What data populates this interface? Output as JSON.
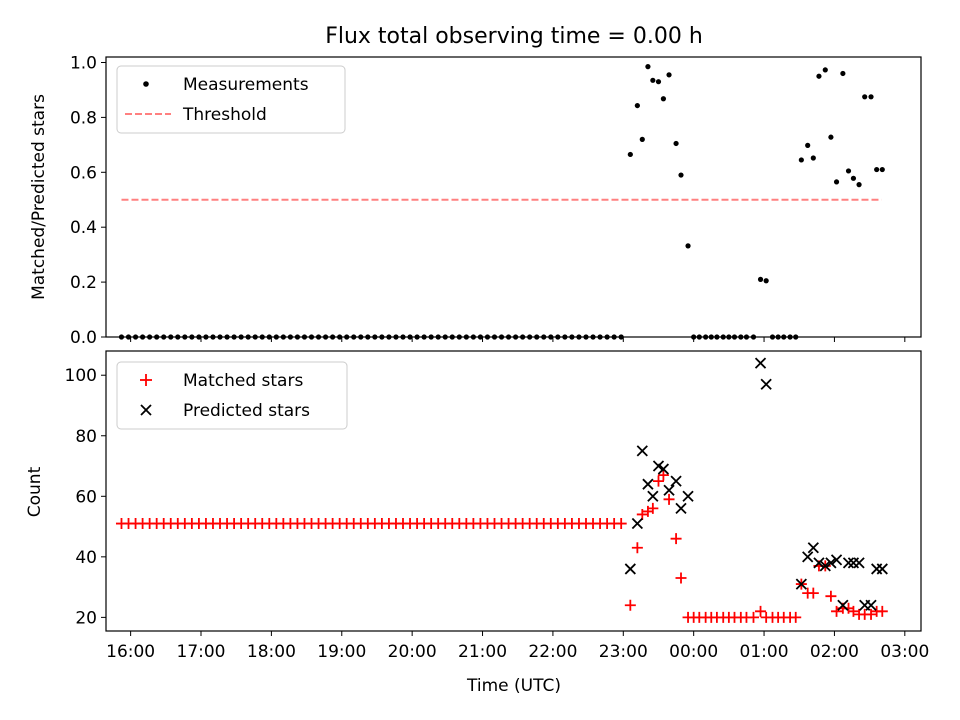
{
  "figure": {
    "title": "Flux total observing time = 0.00 h",
    "xlabel": "Time (UTC)",
    "x_ticks": [
      "16:00",
      "17:00",
      "18:00",
      "19:00",
      "20:00",
      "21:00",
      "22:00",
      "23:00",
      "00:00",
      "01:00",
      "02:00",
      "03:00"
    ]
  },
  "chart_data": [
    {
      "type": "scatter",
      "ylabel": "Matched/Predicted stars",
      "ylim": [
        0,
        1.02
      ],
      "yticks": [
        0,
        0.2,
        0.4,
        0.6,
        0.8,
        1.0
      ],
      "ytick_labels": [
        "0.0",
        "0.2",
        "0.4",
        "0.6",
        "0.8",
        "1.0"
      ],
      "xlim_hours": [
        15.65,
        27.23
      ],
      "legend": {
        "location": "upper left",
        "entries": [
          "Measurements",
          "Threshold"
        ]
      },
      "threshold": {
        "name": "Threshold",
        "value": 0.5,
        "x_range": [
          15.87,
          26.67
        ],
        "color": "#ff8080"
      },
      "series": [
        {
          "name": "Measurements",
          "color": "#000000",
          "points": [
            [
              15.87,
              0
            ],
            [
              15.97,
              0
            ],
            [
              16.07,
              0
            ],
            [
              16.17,
              0
            ],
            [
              16.27,
              0
            ],
            [
              16.37,
              0
            ],
            [
              16.47,
              0
            ],
            [
              16.57,
              0
            ],
            [
              16.67,
              0
            ],
            [
              16.77,
              0
            ],
            [
              16.87,
              0
            ],
            [
              16.97,
              0
            ],
            [
              17.07,
              0
            ],
            [
              17.17,
              0
            ],
            [
              17.27,
              0
            ],
            [
              17.37,
              0
            ],
            [
              17.47,
              0
            ],
            [
              17.57,
              0
            ],
            [
              17.67,
              0
            ],
            [
              17.77,
              0
            ],
            [
              17.87,
              0
            ],
            [
              17.97,
              0
            ],
            [
              18.07,
              0
            ],
            [
              18.17,
              0
            ],
            [
              18.27,
              0
            ],
            [
              18.37,
              0
            ],
            [
              18.47,
              0
            ],
            [
              18.57,
              0
            ],
            [
              18.67,
              0
            ],
            [
              18.77,
              0
            ],
            [
              18.87,
              0
            ],
            [
              18.97,
              0
            ],
            [
              19.07,
              0
            ],
            [
              19.17,
              0
            ],
            [
              19.27,
              0
            ],
            [
              19.37,
              0
            ],
            [
              19.47,
              0
            ],
            [
              19.57,
              0
            ],
            [
              19.67,
              0
            ],
            [
              19.77,
              0
            ],
            [
              19.87,
              0
            ],
            [
              19.97,
              0
            ],
            [
              20.07,
              0
            ],
            [
              20.17,
              0
            ],
            [
              20.27,
              0
            ],
            [
              20.37,
              0
            ],
            [
              20.47,
              0
            ],
            [
              20.57,
              0
            ],
            [
              20.67,
              0
            ],
            [
              20.77,
              0
            ],
            [
              20.87,
              0
            ],
            [
              20.97,
              0
            ],
            [
              21.07,
              0
            ],
            [
              21.17,
              0
            ],
            [
              21.27,
              0
            ],
            [
              21.37,
              0
            ],
            [
              21.47,
              0
            ],
            [
              21.57,
              0
            ],
            [
              21.67,
              0
            ],
            [
              21.77,
              0
            ],
            [
              21.87,
              0
            ],
            [
              21.97,
              0
            ],
            [
              22.07,
              0
            ],
            [
              22.17,
              0
            ],
            [
              22.27,
              0
            ],
            [
              22.37,
              0
            ],
            [
              22.47,
              0
            ],
            [
              22.57,
              0
            ],
            [
              22.67,
              0
            ],
            [
              22.77,
              0
            ],
            [
              22.87,
              0
            ],
            [
              22.97,
              0
            ],
            [
              23.1,
              0.665
            ],
            [
              23.2,
              0.843
            ],
            [
              23.27,
              0.72
            ],
            [
              23.35,
              0.985
            ],
            [
              23.42,
              0.935
            ],
            [
              23.5,
              0.93
            ],
            [
              23.57,
              0.868
            ],
            [
              23.65,
              0.955
            ],
            [
              23.75,
              0.705
            ],
            [
              23.82,
              0.59
            ],
            [
              23.92,
              0.332
            ],
            [
              24.0,
              0
            ],
            [
              24.08,
              0
            ],
            [
              24.17,
              0
            ],
            [
              24.25,
              0
            ],
            [
              24.33,
              0
            ],
            [
              24.42,
              0
            ],
            [
              24.5,
              0
            ],
            [
              24.58,
              0
            ],
            [
              24.67,
              0
            ],
            [
              24.75,
              0
            ],
            [
              24.85,
              0
            ],
            [
              24.95,
              0.21
            ],
            [
              25.03,
              0.205
            ],
            [
              25.12,
              0
            ],
            [
              25.2,
              0
            ],
            [
              25.28,
              0
            ],
            [
              25.37,
              0
            ],
            [
              25.45,
              0
            ],
            [
              25.53,
              0.645
            ],
            [
              25.62,
              0.698
            ],
            [
              25.7,
              0.652
            ],
            [
              25.78,
              0.95
            ],
            [
              25.87,
              0.973
            ],
            [
              25.95,
              0.728
            ],
            [
              26.03,
              0.565
            ],
            [
              26.12,
              0.96
            ],
            [
              26.2,
              0.605
            ],
            [
              26.27,
              0.578
            ],
            [
              26.35,
              0.555
            ],
            [
              26.43,
              0.875
            ],
            [
              26.52,
              0.875
            ],
            [
              26.6,
              0.61
            ],
            [
              26.68,
              0.61
            ]
          ]
        }
      ]
    },
    {
      "type": "scatter",
      "ylabel": "Count",
      "ylim": [
        15.5,
        108
      ],
      "yticks": [
        20,
        40,
        60,
        80,
        100
      ],
      "ytick_labels": [
        "20",
        "40",
        "60",
        "80",
        "100"
      ],
      "xlim_hours": [
        15.65,
        27.23
      ],
      "legend": {
        "location": "upper left",
        "entries": [
          "Matched stars",
          "Predicted stars"
        ]
      },
      "series": [
        {
          "name": "Matched stars",
          "marker": "plus",
          "color": "#ff0000",
          "points": [
            [
              15.87,
              51
            ],
            [
              15.97,
              51
            ],
            [
              16.07,
              51
            ],
            [
              16.17,
              51
            ],
            [
              16.27,
              51
            ],
            [
              16.37,
              51
            ],
            [
              16.47,
              51
            ],
            [
              16.57,
              51
            ],
            [
              16.67,
              51
            ],
            [
              16.77,
              51
            ],
            [
              16.87,
              51
            ],
            [
              16.97,
              51
            ],
            [
              17.07,
              51
            ],
            [
              17.17,
              51
            ],
            [
              17.27,
              51
            ],
            [
              17.37,
              51
            ],
            [
              17.47,
              51
            ],
            [
              17.57,
              51
            ],
            [
              17.67,
              51
            ],
            [
              17.77,
              51
            ],
            [
              17.87,
              51
            ],
            [
              17.97,
              51
            ],
            [
              18.07,
              51
            ],
            [
              18.17,
              51
            ],
            [
              18.27,
              51
            ],
            [
              18.37,
              51
            ],
            [
              18.47,
              51
            ],
            [
              18.57,
              51
            ],
            [
              18.67,
              51
            ],
            [
              18.77,
              51
            ],
            [
              18.87,
              51
            ],
            [
              18.97,
              51
            ],
            [
              19.07,
              51
            ],
            [
              19.17,
              51
            ],
            [
              19.27,
              51
            ],
            [
              19.37,
              51
            ],
            [
              19.47,
              51
            ],
            [
              19.57,
              51
            ],
            [
              19.67,
              51
            ],
            [
              19.77,
              51
            ],
            [
              19.87,
              51
            ],
            [
              19.97,
              51
            ],
            [
              20.07,
              51
            ],
            [
              20.17,
              51
            ],
            [
              20.27,
              51
            ],
            [
              20.37,
              51
            ],
            [
              20.47,
              51
            ],
            [
              20.57,
              51
            ],
            [
              20.67,
              51
            ],
            [
              20.77,
              51
            ],
            [
              20.87,
              51
            ],
            [
              20.97,
              51
            ],
            [
              21.07,
              51
            ],
            [
              21.17,
              51
            ],
            [
              21.27,
              51
            ],
            [
              21.37,
              51
            ],
            [
              21.47,
              51
            ],
            [
              21.57,
              51
            ],
            [
              21.67,
              51
            ],
            [
              21.77,
              51
            ],
            [
              21.87,
              51
            ],
            [
              21.97,
              51
            ],
            [
              22.07,
              51
            ],
            [
              22.17,
              51
            ],
            [
              22.27,
              51
            ],
            [
              22.37,
              51
            ],
            [
              22.47,
              51
            ],
            [
              22.57,
              51
            ],
            [
              22.67,
              51
            ],
            [
              22.77,
              51
            ],
            [
              22.87,
              51
            ],
            [
              22.97,
              51
            ],
            [
              23.1,
              24
            ],
            [
              23.2,
              43
            ],
            [
              23.27,
              54
            ],
            [
              23.35,
              55
            ],
            [
              23.42,
              56
            ],
            [
              23.5,
              65
            ],
            [
              23.57,
              67
            ],
            [
              23.65,
              59
            ],
            [
              23.75,
              46
            ],
            [
              23.82,
              33
            ],
            [
              23.92,
              20
            ],
            [
              24.0,
              20
            ],
            [
              24.08,
              20
            ],
            [
              24.17,
              20
            ],
            [
              24.25,
              20
            ],
            [
              24.33,
              20
            ],
            [
              24.42,
              20
            ],
            [
              24.5,
              20
            ],
            [
              24.58,
              20
            ],
            [
              24.67,
              20
            ],
            [
              24.75,
              20
            ],
            [
              24.85,
              20
            ],
            [
              24.95,
              22
            ],
            [
              25.03,
              20
            ],
            [
              25.12,
              20
            ],
            [
              25.2,
              20
            ],
            [
              25.28,
              20
            ],
            [
              25.37,
              20
            ],
            [
              25.45,
              20
            ],
            [
              25.53,
              31
            ],
            [
              25.62,
              28
            ],
            [
              25.7,
              28
            ],
            [
              25.78,
              37
            ],
            [
              25.87,
              37
            ],
            [
              25.95,
              27
            ],
            [
              26.03,
              22
            ],
            [
              26.12,
              23
            ],
            [
              26.2,
              23
            ],
            [
              26.27,
              22
            ],
            [
              26.35,
              21
            ],
            [
              26.43,
              21
            ],
            [
              26.52,
              21
            ],
            [
              26.6,
              22
            ],
            [
              26.68,
              22
            ]
          ]
        },
        {
          "name": "Predicted stars",
          "marker": "x",
          "color": "#000000",
          "points": [
            [
              23.1,
              36
            ],
            [
              23.2,
              51
            ],
            [
              23.27,
              75
            ],
            [
              23.35,
              64
            ],
            [
              23.42,
              60
            ],
            [
              23.5,
              70
            ],
            [
              23.57,
              69
            ],
            [
              23.65,
              62
            ],
            [
              23.75,
              65
            ],
            [
              23.82,
              56
            ],
            [
              23.92,
              60
            ],
            [
              24.95,
              104
            ],
            [
              25.03,
              97
            ],
            [
              25.53,
              31
            ],
            [
              25.62,
              40
            ],
            [
              25.7,
              43
            ],
            [
              25.78,
              38
            ],
            [
              25.87,
              37
            ],
            [
              25.95,
              38
            ],
            [
              26.03,
              39
            ],
            [
              26.12,
              24
            ],
            [
              26.2,
              38
            ],
            [
              26.27,
              38
            ],
            [
              26.35,
              38
            ],
            [
              26.43,
              24
            ],
            [
              26.52,
              24
            ],
            [
              26.6,
              36
            ],
            [
              26.68,
              36
            ]
          ]
        }
      ]
    }
  ]
}
